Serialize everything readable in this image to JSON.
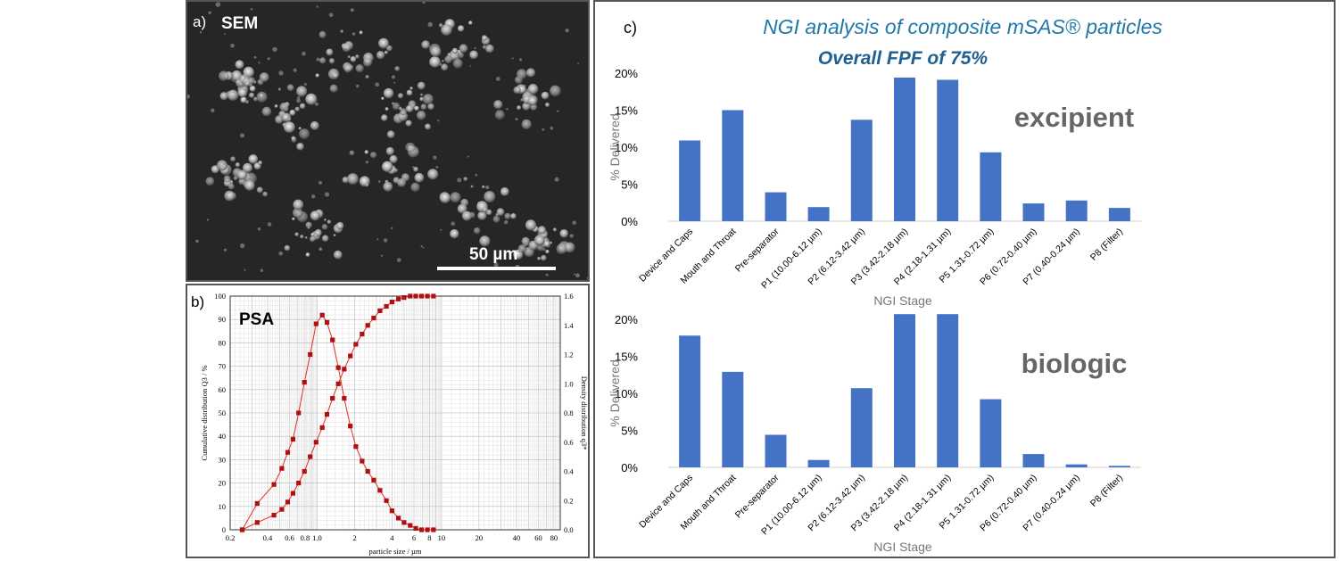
{
  "panel_a": {
    "label": "a)",
    "title": "SEM",
    "scale_bar": "50 µm"
  },
  "panel_b": {
    "label": "b)",
    "title": "PSA"
  },
  "panel_c": {
    "label": "c)",
    "title": "NGI analysis of composite mSAS® particles",
    "subtitle": "Overall FPF of 75%"
  },
  "colors": {
    "bar": "#4472C4",
    "title_blue": "#1F78A8",
    "subtitle_blue": "#1F6091",
    "psa_curve": "#e03020",
    "psa_marker": "#b01010"
  },
  "chart_data": [
    {
      "type": "line",
      "id": "psa",
      "xscale": "log",
      "xlim": [
        0.2,
        90
      ],
      "xlabel": "particle size / µm",
      "xticks": [
        0.2,
        0.4,
        0.6,
        0.8,
        1.0,
        2,
        4,
        6,
        8,
        10,
        20,
        40,
        60,
        80
      ],
      "xtick_labels": [
        "0.2",
        "0.4",
        "0.6",
        "0.8",
        "1.0",
        "2",
        "4",
        "6",
        "8",
        "10",
        "20",
        "40",
        "60",
        "80"
      ],
      "ylabel": "Cumulative distribution Q3 / %",
      "ylim": [
        0,
        100
      ],
      "yticks": [
        0,
        10,
        20,
        30,
        40,
        50,
        60,
        70,
        80,
        90,
        100
      ],
      "y2label": "Density distribution q3*",
      "y2lim": [
        0,
        1.6
      ],
      "y2ticks": [
        "0.0",
        "0.2",
        "0.4",
        "0.6",
        "0.8",
        "1.0",
        "1.2",
        "1.4",
        "1.6"
      ],
      "grid": true,
      "series": [
        {
          "axis": "right",
          "x": [
            0.25,
            0.33,
            0.45,
            0.52,
            0.58,
            0.64,
            0.71,
            0.79,
            0.88,
            0.98,
            1.1,
            1.2,
            1.33,
            1.48,
            1.65,
            1.85,
            2.05,
            2.3,
            2.55,
            2.85,
            3.2,
            3.6,
            4.0,
            4.5,
            5.0,
            5.6,
            6.2,
            6.9,
            7.7,
            8.6
          ],
          "y": [
            0.0,
            0.05,
            0.1,
            0.14,
            0.19,
            0.25,
            0.32,
            0.4,
            0.5,
            0.6,
            0.7,
            0.79,
            0.9,
            1.0,
            1.1,
            1.19,
            1.27,
            1.34,
            1.4,
            1.45,
            1.5,
            1.53,
            1.56,
            1.58,
            1.59,
            1.6,
            1.6,
            1.6,
            1.6,
            1.6
          ]
        },
        {
          "axis": "right",
          "x": [
            0.25,
            0.33,
            0.45,
            0.52,
            0.58,
            0.64,
            0.71,
            0.79,
            0.88,
            0.98,
            1.1,
            1.2,
            1.33,
            1.48,
            1.65,
            1.85,
            2.05,
            2.3,
            2.55,
            2.85,
            3.2,
            3.6,
            4.0,
            4.5,
            5.0,
            5.6,
            6.2,
            6.9,
            7.7,
            8.6
          ],
          "y": [
            0.0,
            0.18,
            0.31,
            0.42,
            0.53,
            0.62,
            0.8,
            1.01,
            1.2,
            1.41,
            1.47,
            1.42,
            1.3,
            1.11,
            0.9,
            0.71,
            0.57,
            0.47,
            0.4,
            0.34,
            0.27,
            0.2,
            0.13,
            0.08,
            0.05,
            0.03,
            0.01,
            0.0,
            0.0,
            0.0
          ]
        }
      ]
    },
    {
      "type": "bar",
      "id": "excipient",
      "label": "excipient",
      "categories": [
        "Device and Caps",
        "Mouth and Throat",
        "Pre-separator",
        "P1 (10.00-6.12 µm)",
        "P2 (6.12-3.42 µm)",
        "P3 (3.42-2.18 µm)",
        "P4 (2.18-1.31 µm)",
        "P5 1.31-0.72 µm)",
        "P6 (0.72-0.40 µm)",
        "P7 (0.40-0.24 µm)",
        "P8 (Filter)"
      ],
      "values": [
        10.9,
        15.0,
        3.9,
        1.9,
        13.7,
        19.4,
        19.1,
        9.3,
        2.4,
        2.8,
        1.8
      ],
      "ylim": [
        0,
        20
      ],
      "yticks": [
        "0%",
        "5%",
        "10%",
        "15%",
        "20%"
      ],
      "xlabel": "NGI Stage",
      "ylabel": "% Delivered"
    },
    {
      "type": "bar",
      "id": "biologic",
      "label": "biologic",
      "categories": [
        "Device and Caps",
        "Mouth and Throat",
        "Pre-separator",
        "P1 (10.00-6.12 µm)",
        "P2 (6.12-3.42 µm)",
        "P3 (3.42-2.18 µm)",
        "P4 (2.18-1.31 µm)",
        "P5 1.31-0.72 µm)",
        "P6 (0.72-0.40 µm)",
        "P7 (0.40-0.24 µm)",
        "P8 (Filter)"
      ],
      "values": [
        17.8,
        12.9,
        4.4,
        1.0,
        10.7,
        20.7,
        20.7,
        9.2,
        1.8,
        0.4,
        0.2
      ],
      "ylim": [
        0,
        20
      ],
      "yticks": [
        "0%",
        "5%",
        "10%",
        "15%",
        "20%"
      ],
      "xlabel": "NGI Stage",
      "ylabel": "% Delivered"
    }
  ]
}
